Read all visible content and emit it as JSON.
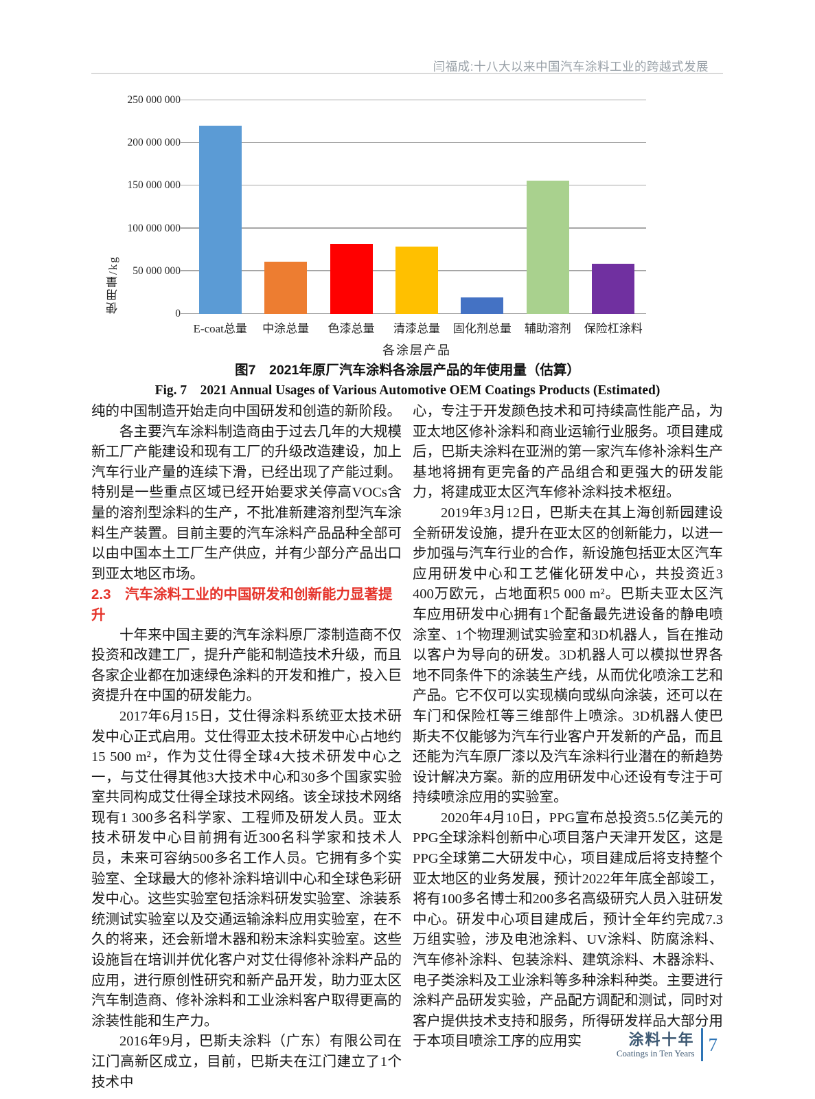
{
  "page": {
    "running_head": "闫福成:十八大以来中国汽车涂料工业的跨越式发展",
    "footer": {
      "brand_cn": "涂料十年",
      "brand_en": "Coatings in Ten Years",
      "page_number": "7"
    }
  },
  "figure": {
    "caption_cn": "图7　2021年原厂汽车涂料各涂层产品的年使用量（估算）",
    "caption_en": "Fig. 7　2021 Annual Usages of Various Automotive OEM Coatings Products (Estimated)"
  },
  "chart_data": {
    "type": "bar",
    "title": "",
    "xlabel": "各涂层产品",
    "ylabel": "使用量/kg",
    "categories": [
      "E-coat总量",
      "中涂总量",
      "色漆总量",
      "清漆总量",
      "固化剂总量",
      "辅助溶剂",
      "保险杠涂料"
    ],
    "values": [
      220000000,
      61000000,
      82000000,
      79000000,
      19000000,
      156000000,
      59000000
    ],
    "bar_colors": [
      "#5B9BD5",
      "#ED7D31",
      "#FF0000",
      "#FFC000",
      "#4472C4",
      "#A9D18E",
      "#7030A0"
    ],
    "ylim": [
      0,
      250000000
    ],
    "ytick_step": 50000000,
    "ytick_labels": [
      "0",
      "50 000 000",
      "100 000 000",
      "150 000 000",
      "200 000 000",
      "250 000 000"
    ],
    "grid": true,
    "legend": "none",
    "gridline_color": "#A6A6A6"
  },
  "article": {
    "left_column": [
      {
        "style": "body",
        "indent": false,
        "text": "纯的中国制造开始走向中国研发和创造的新阶段。"
      },
      {
        "style": "body",
        "indent": true,
        "text": "各主要汽车涂料制造商由于过去几年的大规模新工厂产能建设和现有工厂的升级改造建设，加上汽车行业产量的连续下滑，已经出现了产能过剩。特别是一些重点区域已经开始要求关停高VOCs含量的溶剂型涂料的生产，不批准新建溶剂型汽车涂料生产装置。目前主要的汽车涂料产品品种全部可以由中国本土工厂生产供应，并有少部分产品出口到亚太地区市场。"
      },
      {
        "style": "heading",
        "indent": false,
        "text": "2.3　汽车涂料工业的中国研发和创新能力显著提升"
      },
      {
        "style": "body",
        "indent": true,
        "text": "十年来中国主要的汽车涂料原厂漆制造商不仅投资和改建工厂，提升产能和制造技术升级，而且各家企业都在加速绿色涂料的开发和推广，投入巨资提升在中国的研发能力。"
      },
      {
        "style": "body",
        "indent": true,
        "text": "2017年6月15日，艾仕得涂料系统亚太技术研发中心正式启用。艾仕得亚太技术研发中心占地约15 500 m²，作为艾仕得全球4大技术研发中心之一，与艾仕得其他3大技术中心和30多个国家实验室共同构成艾仕得全球技术网络。该全球技术网络现有1 300多名科学家、工程师及研发人员。亚太技术研发中心目前拥有近300名科学家和技术人员，未来可容纳500多名工作人员。它拥有多个实验室、全球最大的修补涂料培训中心和全球色彩研发中心。这些实验室包括涂料研发实验室、涂装系统测试实验室以及交通运输涂料应用实验室，在不久的将来，还会新增木器和粉末涂料实验室。这些设施旨在培训并优化客户对艾仕得修补涂料产品的应用，进行原创性研究和新产品开发，助力亚太区汽车制造商、修补涂料和工业涂料客户取得更高的涂装性能和生产力。"
      },
      {
        "style": "body",
        "indent": true,
        "text": "2016年9月，巴斯夫涂料（广东）有限公司在江门高新区成立，目前，巴斯夫在江门建立了1个技术中"
      }
    ],
    "right_column": [
      {
        "style": "body",
        "indent": false,
        "text": "心，专注于开发颜色技术和可持续高性能产品，为亚太地区修补涂料和商业运输行业服务。项目建成后，巴斯夫涂料在亚洲的第一家汽车修补涂料生产基地将拥有更完备的产品组合和更强大的研发能力，将建成亚太区汽车修补涂料技术枢纽。"
      },
      {
        "style": "body",
        "indent": true,
        "text": "2019年3月12日，巴斯夫在其上海创新园建设全新研发设施，提升在亚太区的创新能力，以进一步加强与汽车行业的合作，新设施包括亚太区汽车应用研发中心和工艺催化研发中心，共投资近3 400万欧元，占地面积5 000 m²。巴斯夫亚太区汽车应用研发中心拥有1个配备最先进设备的静电喷涂室、1个物理测试实验室和3D机器人，旨在推动以客户为导向的研发。3D机器人可以模拟世界各地不同条件下的涂装生产线，从而优化喷涂工艺和产品。它不仅可以实现横向或纵向涂装，还可以在车门和保险杠等三维部件上喷涂。3D机器人使巴斯夫不仅能够为汽车行业客户开发新的产品，而且还能为汽车原厂漆以及汽车涂料行业潜在的新趋势设计解决方案。新的应用研发中心还设有专注于可持续喷涂应用的实验室。"
      },
      {
        "style": "body",
        "indent": true,
        "text": "2020年4月10日，PPG宣布总投资5.5亿美元的PPG全球涂料创新中心项目落户天津开发区，这是PPG全球第二大研发中心，项目建成后将支持整个亚太地区的业务发展，预计2022年年底全部竣工，将有100多名博士和200多名高级研究人员入驻研发中心。研发中心项目建成后，预计全年约完成7.3万组实验，涉及电池涂料、UV涂料、防腐涂料、汽车修补涂料、包装涂料、建筑涂料、木器涂料、电子类涂料及工业涂料等多种涂料种类。主要进行涂料产品研发实验，产品配方调配和测试，同时对客户提供技术支持和服务，所得研发样品大部分用于本项目喷涂工序的应用实"
      }
    ]
  },
  "colors": {
    "heading_red": "#E5332A",
    "footer_dark_blue": "#3D5872",
    "footer_accent_blue": "#2E74B5",
    "running_head_gray": "#98A0A7",
    "rule_gray": "#D9D9D9"
  }
}
